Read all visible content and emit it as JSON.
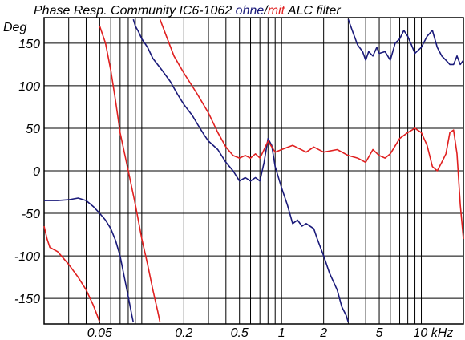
{
  "chart_data": {
    "type": "line",
    "title": {
      "prefix": "Phase Resp. Community IC6-1062 ",
      "series_a": "ohne",
      "separator": "/",
      "series_b": "mit",
      "suffix": " ALC filter"
    },
    "ylabel": "Deg",
    "xunit": "kHz",
    "x_scale": "log",
    "xlim": [
      0.02,
      20
    ],
    "ylim": [
      -180,
      180
    ],
    "y_ticks": [
      150,
      100,
      50,
      0,
      -50,
      -100,
      -150
    ],
    "y_tick_labels": [
      "150",
      "100",
      "50",
      "0",
      "-50",
      "-100",
      "-150"
    ],
    "x_ticks": [
      0.05,
      0.2,
      0.5,
      1,
      2,
      5,
      10
    ],
    "x_tick_labels": [
      "0.05",
      "0.2",
      "0.5",
      "1",
      "2",
      "5",
      "10 kHz"
    ],
    "x_gridlines": [
      0.03,
      0.04,
      0.05,
      0.06,
      0.07,
      0.08,
      0.09,
      0.1,
      0.2,
      0.3,
      0.4,
      0.5,
      0.6,
      0.7,
      0.8,
      0.9,
      1,
      2,
      3,
      4,
      5,
      6,
      7,
      8,
      9,
      10,
      20
    ],
    "y_gridlines": [
      -150,
      -100,
      -50,
      0,
      50,
      100,
      150
    ],
    "grid": true,
    "series": [
      {
        "name": "ohne",
        "color": "#1a1a7a",
        "segments": [
          [
            [
              0.02,
              -35
            ],
            [
              0.025,
              -35
            ],
            [
              0.03,
              -34
            ],
            [
              0.035,
              -32
            ],
            [
              0.04,
              -35
            ],
            [
              0.045,
              -42
            ],
            [
              0.05,
              -50
            ],
            [
              0.055,
              -58
            ],
            [
              0.06,
              -68
            ],
            [
              0.065,
              -82
            ],
            [
              0.07,
              -100
            ],
            [
              0.075,
              -125
            ],
            [
              0.08,
              -148
            ],
            [
              0.085,
              -170
            ],
            [
              0.087,
              -178
            ]
          ],
          [
            [
              0.087,
              178
            ],
            [
              0.09,
              170
            ],
            [
              0.095,
              163
            ],
            [
              0.1,
              155
            ],
            [
              0.11,
              145
            ],
            [
              0.12,
              132
            ],
            [
              0.14,
              118
            ],
            [
              0.16,
              105
            ],
            [
              0.18,
              90
            ],
            [
              0.2,
              78
            ],
            [
              0.23,
              65
            ],
            [
              0.25,
              55
            ],
            [
              0.28,
              42
            ],
            [
              0.3,
              35
            ],
            [
              0.35,
              25
            ],
            [
              0.4,
              10
            ],
            [
              0.45,
              0
            ],
            [
              0.5,
              -12
            ],
            [
              0.55,
              -8
            ],
            [
              0.6,
              -12
            ],
            [
              0.65,
              -8
            ],
            [
              0.7,
              -12
            ],
            [
              0.75,
              10
            ],
            [
              0.8,
              38
            ],
            [
              0.85,
              30
            ],
            [
              0.9,
              5
            ],
            [
              1.0,
              -20
            ],
            [
              1.1,
              -40
            ],
            [
              1.2,
              -62
            ],
            [
              1.3,
              -58
            ],
            [
              1.4,
              -65
            ],
            [
              1.5,
              -62
            ],
            [
              1.7,
              -68
            ],
            [
              1.8,
              -80
            ],
            [
              2.0,
              -100
            ],
            [
              2.2,
              -120
            ],
            [
              2.5,
              -140
            ],
            [
              2.7,
              -160
            ],
            [
              2.9,
              -170
            ],
            [
              3.0,
              -178
            ]
          ],
          [
            [
              3.0,
              178
            ],
            [
              3.2,
              165
            ],
            [
              3.5,
              148
            ],
            [
              3.8,
              140
            ],
            [
              4.0,
              130
            ],
            [
              4.2,
              140
            ],
            [
              4.5,
              135
            ],
            [
              4.8,
              145
            ],
            [
              5.0,
              138
            ],
            [
              5.5,
              140
            ],
            [
              6.0,
              130
            ],
            [
              6.5,
              150
            ],
            [
              7.0,
              155
            ],
            [
              7.5,
              165
            ],
            [
              8.0,
              158
            ],
            [
              8.5,
              148
            ],
            [
              9.0,
              138
            ],
            [
              10.0,
              145
            ],
            [
              11.0,
              158
            ],
            [
              12.0,
              165
            ],
            [
              13.0,
              145
            ],
            [
              14.0,
              135
            ],
            [
              15.0,
              130
            ],
            [
              16.0,
              125
            ],
            [
              17.0,
              125
            ],
            [
              18.0,
              135
            ],
            [
              19.0,
              125
            ],
            [
              20.0,
              130
            ]
          ]
        ]
      },
      {
        "name": "mit",
        "color": "#e02020",
        "segments": [
          [
            [
              0.02,
              -65
            ],
            [
              0.021,
              -80
            ],
            [
              0.022,
              -90
            ],
            [
              0.025,
              -95
            ],
            [
              0.03,
              -110
            ],
            [
              0.035,
              -125
            ],
            [
              0.04,
              -140
            ],
            [
              0.045,
              -158
            ],
            [
              0.048,
              -170
            ],
            [
              0.05,
              -178
            ]
          ],
          [
            [
              0.05,
              170
            ],
            [
              0.055,
              150
            ],
            [
              0.06,
              118
            ],
            [
              0.065,
              82
            ],
            [
              0.07,
              45
            ],
            [
              0.08,
              0
            ],
            [
              0.09,
              -40
            ],
            [
              0.1,
              -80
            ],
            [
              0.11,
              -110
            ],
            [
              0.12,
              -140
            ],
            [
              0.13,
              -165
            ],
            [
              0.135,
              -178
            ]
          ],
          [
            [
              0.135,
              178
            ],
            [
              0.15,
              158
            ],
            [
              0.17,
              135
            ],
            [
              0.2,
              115
            ],
            [
              0.25,
              90
            ],
            [
              0.3,
              68
            ],
            [
              0.35,
              45
            ],
            [
              0.4,
              28
            ],
            [
              0.45,
              18
            ],
            [
              0.5,
              15
            ],
            [
              0.55,
              18
            ],
            [
              0.6,
              15
            ],
            [
              0.65,
              20
            ],
            [
              0.7,
              15
            ],
            [
              0.75,
              25
            ],
            [
              0.8,
              35
            ],
            [
              0.9,
              22
            ],
            [
              1.0,
              25
            ],
            [
              1.2,
              30
            ],
            [
              1.5,
              22
            ],
            [
              1.7,
              28
            ],
            [
              2.0,
              22
            ],
            [
              2.5,
              25
            ],
            [
              3.0,
              18
            ],
            [
              3.5,
              15
            ],
            [
              4.0,
              10
            ],
            [
              4.5,
              25
            ],
            [
              5.0,
              18
            ],
            [
              5.5,
              15
            ],
            [
              6.0,
              20
            ],
            [
              7.0,
              38
            ],
            [
              8.0,
              45
            ],
            [
              9.0,
              50
            ],
            [
              10.0,
              45
            ],
            [
              11.0,
              30
            ],
            [
              12.0,
              5
            ],
            [
              13.0,
              0
            ],
            [
              14.0,
              10
            ],
            [
              15.0,
              20
            ],
            [
              16.0,
              45
            ],
            [
              17.0,
              48
            ],
            [
              18.0,
              20
            ],
            [
              19.0,
              -40
            ],
            [
              20.0,
              -80
            ]
          ]
        ]
      }
    ]
  }
}
